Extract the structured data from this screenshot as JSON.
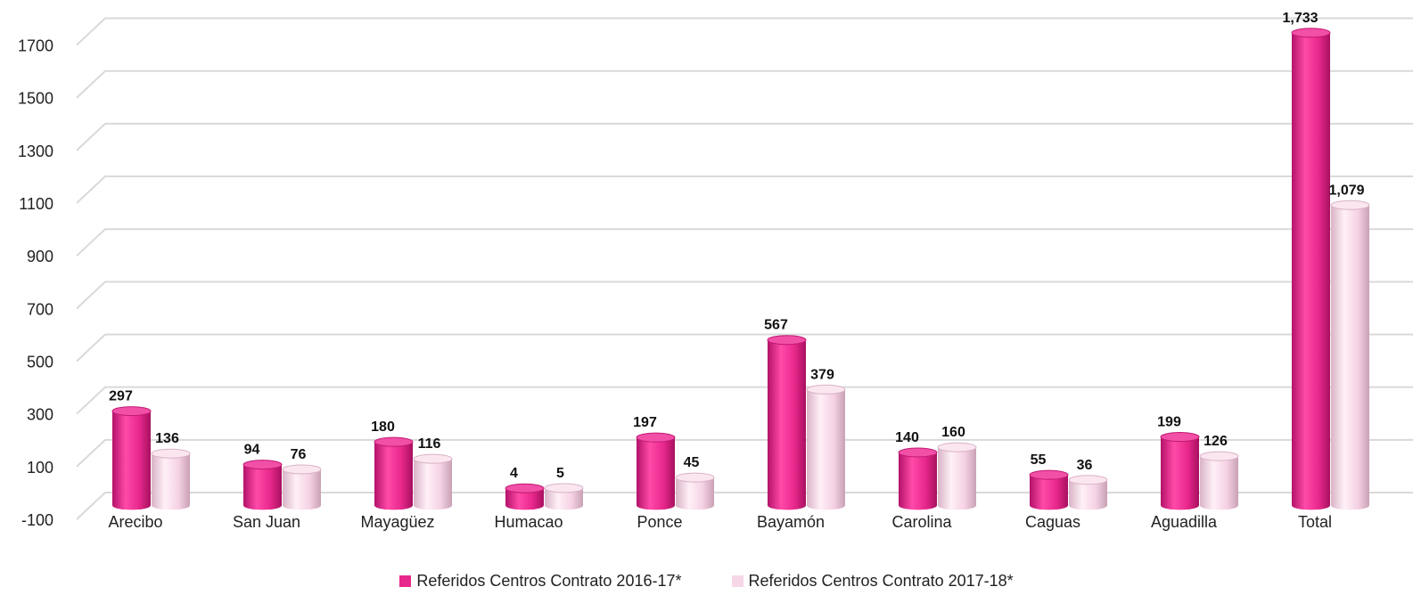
{
  "chart_data": {
    "type": "bar",
    "categories": [
      "Arecibo",
      "San Juan",
      "Mayagüez",
      "Humacao",
      "Ponce",
      "Bayamón",
      "Carolina",
      "Caguas",
      "Aguadilla",
      "Total"
    ],
    "series": [
      {
        "name": "Referidos Centros Contrato 2016-17*",
        "values": [
          297,
          94,
          180,
          4,
          197,
          567,
          140,
          55,
          199,
          1733
        ],
        "labels": [
          "297",
          "94",
          "180",
          "4",
          "197",
          "567",
          "140",
          "55",
          "199",
          "1,733"
        ],
        "color": "#e8288c"
      },
      {
        "name": "Referidos Centros Contrato 2017-18*",
        "values": [
          136,
          76,
          116,
          5,
          45,
          379,
          160,
          36,
          126,
          1079
        ],
        "labels": [
          "136",
          "76",
          "116",
          "5",
          "45",
          "379",
          "160",
          "36",
          "126",
          "1,079"
        ],
        "color": "#f7d6e7"
      }
    ],
    "yticks": [
      "-100",
      "100",
      "300",
      "500",
      "700",
      "900",
      "1100",
      "1300",
      "1500",
      "1700"
    ],
    "ylim": [
      -100,
      1800
    ],
    "grid": true,
    "legend_position": "bottom",
    "title": "",
    "xlabel": "",
    "ylabel": ""
  }
}
